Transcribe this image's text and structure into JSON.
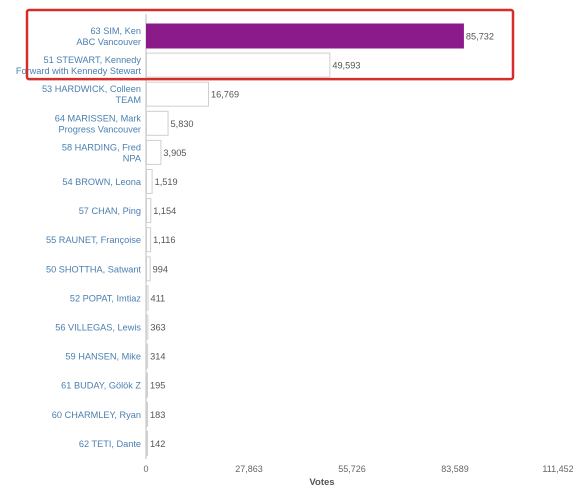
{
  "chart_data": {
    "type": "bar",
    "orientation": "horizontal",
    "categories": [
      [
        "63 SIM, Ken",
        "ABC Vancouver"
      ],
      [
        "51 STEWART, Kennedy",
        "Forward with Kennedy Stewart"
      ],
      [
        "53 HARDWICK, Colleen",
        "TEAM"
      ],
      [
        "64 MARISSEN, Mark",
        "Progress Vancouver"
      ],
      [
        "58 HARDING, Fred",
        "NPA"
      ],
      [
        "54 BROWN, Leona"
      ],
      [
        "57 CHAN, Ping"
      ],
      [
        "55 RAUNET, Françoise"
      ],
      [
        "50 SHOTTHA, Satwant"
      ],
      [
        "52 POPAT, Imtiaz"
      ],
      [
        "56 VILLEGAS, Lewis"
      ],
      [
        "59 HANSEN, Mike"
      ],
      [
        "61 BUDAY, Gölök Z"
      ],
      [
        "60 CHARMLEY, Ryan"
      ],
      [
        "62 TETI, Dante"
      ]
    ],
    "values": [
      85732,
      49593,
      16769,
      5830,
      3905,
      1519,
      1154,
      1116,
      994,
      411,
      363,
      314,
      195,
      183,
      142
    ],
    "value_labels": [
      "85,732",
      "49,593",
      "16,769",
      "5,830",
      "3,905",
      "1,519",
      "1,154",
      "1,116",
      "994",
      "411",
      "363",
      "314",
      "195",
      "183",
      "142"
    ],
    "xlabel": "Votes",
    "xlim": [
      0,
      111452
    ],
    "xticks": [
      0,
      27863,
      55726,
      83589,
      111452
    ],
    "xtick_labels": [
      "0",
      "27,863",
      "55,726",
      "83,589",
      "111,452"
    ],
    "highlighted_bar_color": "#8b1a8b",
    "default_bar_color": "#ffffff",
    "bar_outline_color": "#cfcfcf",
    "category_label_color": "#4a7fb0",
    "value_label_color": "#555555",
    "highlight_box_color": "#d62c2c",
    "highlighted_indices": [
      0
    ],
    "highlight_box_rows": [
      0,
      1
    ]
  }
}
